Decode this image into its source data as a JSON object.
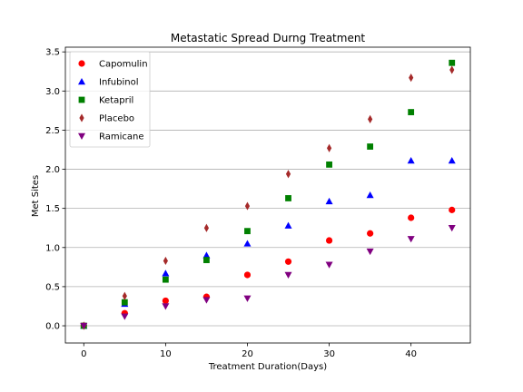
{
  "chart_data": {
    "type": "scatter",
    "title": "Metastatic Spread Durng Treatment",
    "xlabel": "Treatment Duration(Days)",
    "ylabel": "Met Sites",
    "xlim": [
      -2.25,
      47.25
    ],
    "ylim": [
      -0.22,
      3.56
    ],
    "xticks": [
      0,
      10,
      20,
      30,
      40
    ],
    "yticks": [
      0.0,
      0.5,
      1.0,
      1.5,
      2.0,
      2.5,
      3.0,
      3.5
    ],
    "ytick_labels": [
      "0.0",
      "0.5",
      "1.0",
      "1.5",
      "2.0",
      "2.5",
      "3.0",
      "3.5"
    ],
    "grid": "y",
    "legend_position": "upper-left",
    "x": [
      0,
      5,
      10,
      15,
      20,
      25,
      30,
      35,
      40,
      45
    ],
    "series": [
      {
        "name": "Capomulin",
        "color": "#ff0000",
        "marker": "circle",
        "values": [
          0.0,
          0.16,
          0.32,
          0.37,
          0.65,
          0.82,
          1.09,
          1.18,
          1.38,
          1.48
        ]
      },
      {
        "name": "Infubinol",
        "color": "#0000ff",
        "marker": "triangle-up",
        "values": [
          0.0,
          0.28,
          0.67,
          0.9,
          1.05,
          1.28,
          1.59,
          1.67,
          2.11,
          2.11
        ]
      },
      {
        "name": "Ketapril",
        "color": "#008000",
        "marker": "square",
        "values": [
          0.0,
          0.3,
          0.59,
          0.84,
          1.21,
          1.63,
          2.06,
          2.29,
          2.73,
          3.36
        ]
      },
      {
        "name": "Placebo",
        "color": "#a52a2a",
        "marker": "diamond",
        "values": [
          0.0,
          0.38,
          0.83,
          1.25,
          1.53,
          1.94,
          2.27,
          2.64,
          3.17,
          3.27
        ]
      },
      {
        "name": "Ramicane",
        "color": "#800080",
        "marker": "triangle-down",
        "values": [
          0.0,
          0.12,
          0.25,
          0.33,
          0.35,
          0.65,
          0.78,
          0.95,
          1.11,
          1.25
        ]
      }
    ]
  }
}
